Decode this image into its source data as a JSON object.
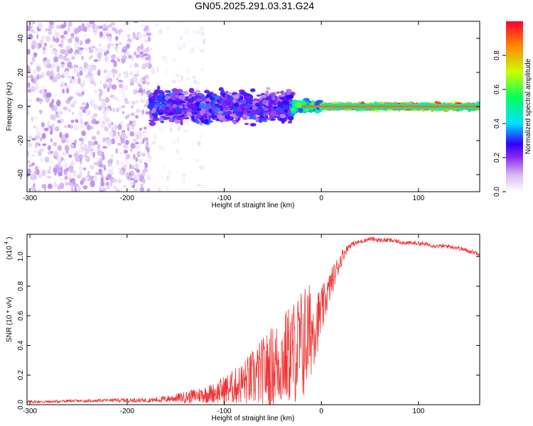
{
  "title": "GN05.2025.291.03.31.G24",
  "chart_data": [
    {
      "type": "heatmap",
      "name": "spectrogram",
      "xlabel": "Height of straight line (km)",
      "ylabel": "Frequency (Hz)",
      "xlim": [
        -303,
        163
      ],
      "ylim": [
        -50,
        50
      ],
      "xticks": [
        -300,
        -200,
        -100,
        0,
        100
      ],
      "yticks": [
        -40,
        -20,
        0,
        20,
        40
      ],
      "colorbar": {
        "label": "Normalized spectral amplitude",
        "range": [
          0.0,
          1.0
        ],
        "ticks": [
          "0.0",
          "0.2",
          "0.4",
          "0.6",
          "0.8"
        ],
        "tick_values": [
          0.0,
          0.2,
          0.4,
          0.6,
          0.8
        ],
        "colors": [
          "#ffffff",
          "#d6b8f2",
          "#8c2cf0",
          "#3000ff",
          "#00e0ff",
          "#00ff60",
          "#c8ff00",
          "#ff8c00",
          "#ff0030"
        ]
      },
      "regions": [
        {
          "x": [
            -303,
            -176
          ],
          "freq_spread": 50,
          "amplitude": [
            0.02,
            0.18
          ],
          "pattern": "scattered noise"
        },
        {
          "x": [
            -176,
            -120
          ],
          "freq_spread": 50,
          "amplitude": [
            0.01,
            0.06
          ],
          "pattern": "sparse faint streaks"
        },
        {
          "x": [
            -176,
            -30
          ],
          "freq_spread": 12,
          "amplitude": [
            0.15,
            0.45
          ],
          "pattern": "broadened signal"
        },
        {
          "x": [
            -30,
            0
          ],
          "freq_spread": 4,
          "amplitude": [
            0.4,
            0.7
          ],
          "pattern": "narrowing band"
        },
        {
          "x": [
            0,
            163
          ],
          "freq_spread": 2,
          "amplitude": [
            0.5,
            1.0
          ],
          "pattern": "narrow carrier line at 0 Hz"
        }
      ]
    },
    {
      "type": "line",
      "name": "snr",
      "xlabel": "Height of straight line (km)",
      "ylabel": "SNR (10 * v/v)",
      "scale_label": "(x10",
      "scale_exponent": "4",
      "xlim": [
        -303,
        163
      ],
      "ylim": [
        0.0,
        1.15
      ],
      "xticks": [
        -300,
        -200,
        -100,
        0,
        100
      ],
      "yticks": [
        "0.0",
        "0.2",
        "0.4",
        "0.6",
        "0.8",
        "1.0"
      ],
      "ytick_values": [
        0.0,
        0.2,
        0.4,
        0.6,
        0.8,
        1.0
      ],
      "color": "#ee3333",
      "series": [
        {
          "name": "SNR",
          "x": [
            -303,
            -280,
            -260,
            -240,
            -220,
            -200,
            -180,
            -165,
            -150,
            -140,
            -130,
            -120,
            -110,
            -100,
            -90,
            -80,
            -70,
            -60,
            -50,
            -40,
            -30,
            -20,
            -15,
            -10,
            -5,
            0,
            5,
            10,
            15,
            20,
            25,
            30,
            40,
            50,
            60,
            70,
            80,
            90,
            100,
            110,
            120,
            130,
            140,
            150,
            163
          ],
          "mean": [
            0.02,
            0.02,
            0.025,
            0.025,
            0.03,
            0.03,
            0.03,
            0.035,
            0.045,
            0.05,
            0.06,
            0.07,
            0.08,
            0.1,
            0.12,
            0.15,
            0.18,
            0.22,
            0.26,
            0.3,
            0.35,
            0.4,
            0.45,
            0.5,
            0.55,
            0.62,
            0.72,
            0.82,
            0.9,
            0.98,
            1.04,
            1.08,
            1.1,
            1.12,
            1.11,
            1.11,
            1.1,
            1.09,
            1.09,
            1.08,
            1.07,
            1.07,
            1.06,
            1.04,
            1.02
          ],
          "noise": [
            0.01,
            0.01,
            0.01,
            0.01,
            0.01,
            0.015,
            0.015,
            0.02,
            0.03,
            0.04,
            0.05,
            0.06,
            0.07,
            0.1,
            0.12,
            0.15,
            0.2,
            0.24,
            0.28,
            0.32,
            0.35,
            0.4,
            0.4,
            0.3,
            0.22,
            0.18,
            0.12,
            0.1,
            0.08,
            0.06,
            0.03,
            0.02,
            0.015,
            0.015,
            0.015,
            0.015,
            0.015,
            0.015,
            0.015,
            0.015,
            0.015,
            0.015,
            0.015,
            0.015,
            0.015
          ]
        }
      ]
    }
  ]
}
